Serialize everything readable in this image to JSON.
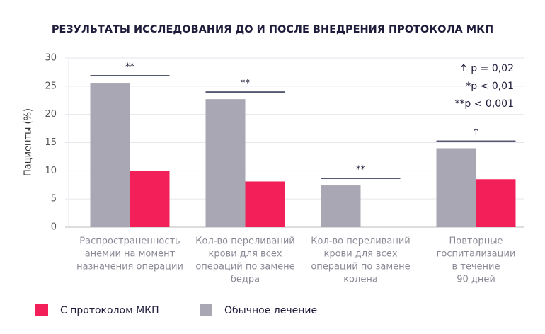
{
  "chart_data": {
    "type": "bar",
    "title": "РЕЗУЛЬТАТЫ ИССЛЕДОВАНИЯ ДО И ПОСЛЕ ВНЕДРЕНИЯ ПРОТОКОЛА МКП",
    "y_label": "Пациенты (%)",
    "categories": [
      [
        "Распространенность",
        "анемии на момент",
        "назначения операции"
      ],
      [
        "Кол-во переливаний",
        "крови для всех",
        "операций по замене",
        "бедра"
      ],
      [
        "Кол-во переливаний",
        "крови для всех",
        "операций по замене",
        "колена"
      ],
      [
        "Повторные",
        "госпитализации",
        "в течение",
        "90 дней"
      ]
    ],
    "series": [
      {
        "name": "С протоколом МКП",
        "color": "#f21f59",
        "values": [
          10,
          8.1,
          null,
          8.5
        ]
      },
      {
        "name": "Обычное лечение",
        "color": "#a9a7b3",
        "values": [
          25.6,
          22.7,
          7.4,
          14
        ]
      }
    ],
    "significance": [
      "**",
      "**",
      "**",
      "↑"
    ],
    "notes": [
      "↑ p = 0,02",
      "*p < 0,01",
      "**p < 0,001"
    ],
    "ylim": [
      0,
      30
    ],
    "yticks": [
      0,
      5,
      10,
      15,
      20,
      25,
      30
    ],
    "grid": true
  }
}
